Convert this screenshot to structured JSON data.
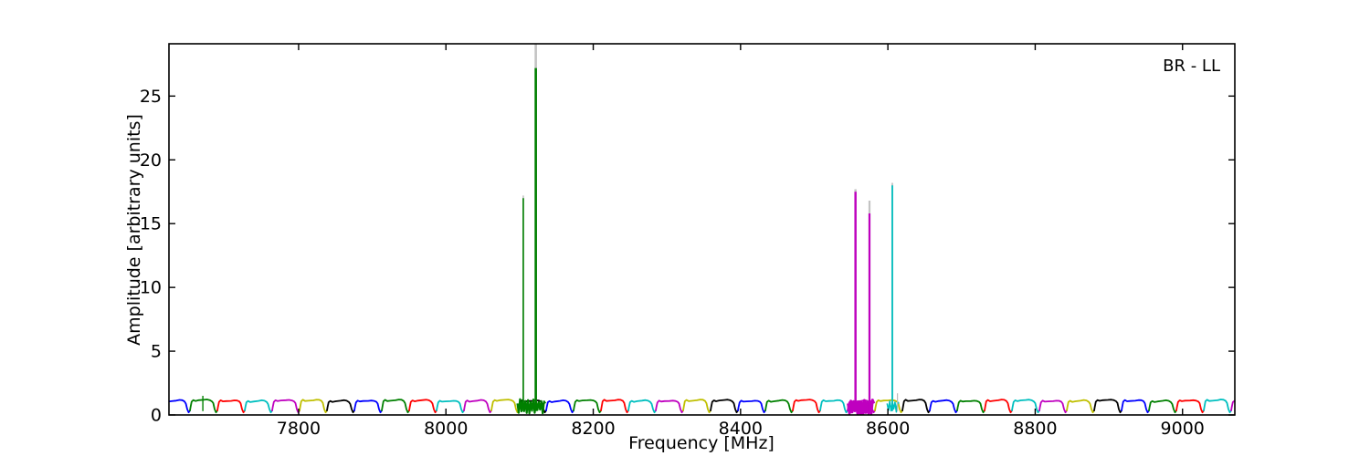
{
  "figure": {
    "annotation": "BR - LL",
    "background_color": "#ffffff",
    "frame_color": "#000000"
  },
  "chart_data": {
    "type": "line",
    "title": "",
    "xlabel": "Frequency [MHz]",
    "ylabel": "Amplitude [arbitrary units]",
    "annotation": "BR - LL",
    "grid": false,
    "legend": null,
    "xlim": [
      7624,
      9071
    ],
    "ylim": [
      0,
      29.1
    ],
    "xticks": [
      7800,
      8000,
      8200,
      8400,
      8600,
      8800,
      9000
    ],
    "yticks": [
      0,
      5,
      10,
      15,
      20,
      25
    ],
    "gray_color": "#c3c3c3",
    "bandpass_baseline": {
      "description": "contiguous bandpass sub-bands, plateau near amplitude 1.1 with deep notches at band edges, colors cycle through matplotlib classic b,g,r,c,m,y,k",
      "first_boundary_mhz": 7615.3,
      "band_width_mhz": 37.2,
      "band_count": 40,
      "plateau_amplitude": 1.13,
      "notch_amplitude": 0.2,
      "color_cycle": [
        "#0000ff",
        "#008000",
        "#ff0000",
        "#00bfbf",
        "#bf00bf",
        "#bfbf00",
        "#000000"
      ],
      "shape_profile": [
        [
          0,
          0.35
        ],
        [
          0.02,
          0.6
        ],
        [
          0.06,
          1.02
        ],
        [
          0.12,
          1.14
        ],
        [
          0.2,
          1.06
        ],
        [
          0.32,
          1.1
        ],
        [
          0.5,
          1.13
        ],
        [
          0.62,
          1.17
        ],
        [
          0.72,
          1.14
        ],
        [
          0.8,
          1.05
        ],
        [
          0.85,
          0.9
        ],
        [
          0.9,
          0.45
        ],
        [
          0.95,
          0.2
        ],
        [
          1,
          0.35
        ]
      ]
    },
    "spikes": [
      {
        "freq_mhz": 7670,
        "amplitude": 1.5,
        "color": "#008000",
        "gray_amplitude": null,
        "clipped": false,
        "stroke_width": 1.4
      },
      {
        "freq_mhz": 8105,
        "amplitude": 17.0,
        "color": "#008000",
        "gray_amplitude": 17.2,
        "clipped": false,
        "stroke_width": 1.6
      },
      {
        "freq_mhz": 8122,
        "amplitude": 27.2,
        "color": "#008000",
        "gray_amplitude": 30.0,
        "clipped": true,
        "stroke_width": 2.6
      },
      {
        "freq_mhz": 8556,
        "amplitude": 17.5,
        "color": "#bf00bf",
        "gray_amplitude": 17.7,
        "clipped": false,
        "stroke_width": 2.4
      },
      {
        "freq_mhz": 8575,
        "amplitude": 15.8,
        "color": "#bf00bf",
        "gray_amplitude": 16.8,
        "clipped": false,
        "stroke_width": 2.2
      },
      {
        "freq_mhz": 8606,
        "amplitude": 18.0,
        "color": "#00bfbf",
        "gray_amplitude": 18.2,
        "clipped": false,
        "stroke_width": 1.8
      },
      {
        "freq_mhz": 8613,
        "amplitude": 1.7,
        "color": "#bbbbbb",
        "gray_amplitude": null,
        "clipped": false,
        "stroke_width": 1.2
      }
    ],
    "base_scribbles": [
      {
        "from_mhz": 8097,
        "to_mhz": 8135,
        "color": "#008000",
        "stroke": 2.2,
        "min": 0.12,
        "max": 1.25,
        "blob": false
      },
      {
        "from_mhz": 8546,
        "to_mhz": 8581,
        "color": "#bf00bf",
        "stroke": 3.0,
        "min": 0.03,
        "max": 1.2,
        "blob": true
      },
      {
        "from_mhz": 8599,
        "to_mhz": 8615,
        "color": "#00bfbf",
        "stroke": 1.6,
        "min": 0.2,
        "max": 1.1,
        "blob": false
      }
    ]
  }
}
